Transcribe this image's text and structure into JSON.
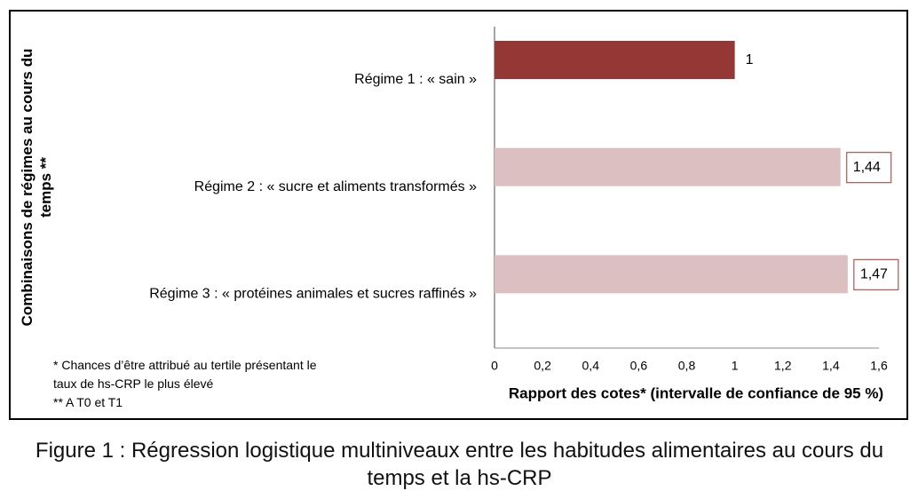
{
  "chart_data": {
    "type": "barh",
    "categories": [
      "Régime 1 : « sain »",
      "Régime 2 : « sucre et aliments transformés »",
      "Régime 3 : « protéines animales et sucres raffinés »"
    ],
    "values": [
      1,
      1.44,
      1.47
    ],
    "value_labels": [
      "1",
      "1,44",
      "1,47"
    ],
    "value_label_boxed": [
      false,
      true,
      true
    ],
    "value_label_box_color": "#c0504d",
    "colors": [
      "#953735",
      "#dcbfc0",
      "#dcbfc0"
    ],
    "xlim": [
      0,
      1.6
    ],
    "xticks": [
      0,
      {
        "value": 0.2,
        "label": "0,2"
      },
      {
        "value": 0.4,
        "label": "0,4"
      },
      {
        "value": 0.6,
        "label": "0,6"
      },
      {
        "value": 0.8,
        "label": "0,8"
      },
      1,
      {
        "value": 1.2,
        "label": "1,2"
      },
      {
        "value": 1.4,
        "label": "1,4"
      },
      {
        "value": 1.6,
        "label": "1,6"
      }
    ],
    "xlabel": "Rapport des cotes* (intervalle de confiance de 95 %)",
    "ylabel": "Combinaisons de régimes au cours du temps **",
    "notes": [
      "* Chances d’être attribué au tertile présentant le",
      "taux de hs-CRP le plus élevé",
      "** A T0 et T1"
    ],
    "caption": "Figure 1 : Régression logistique multiniveaux entre les habitudes alimentaires au cours du temps et la hs-CRP"
  }
}
